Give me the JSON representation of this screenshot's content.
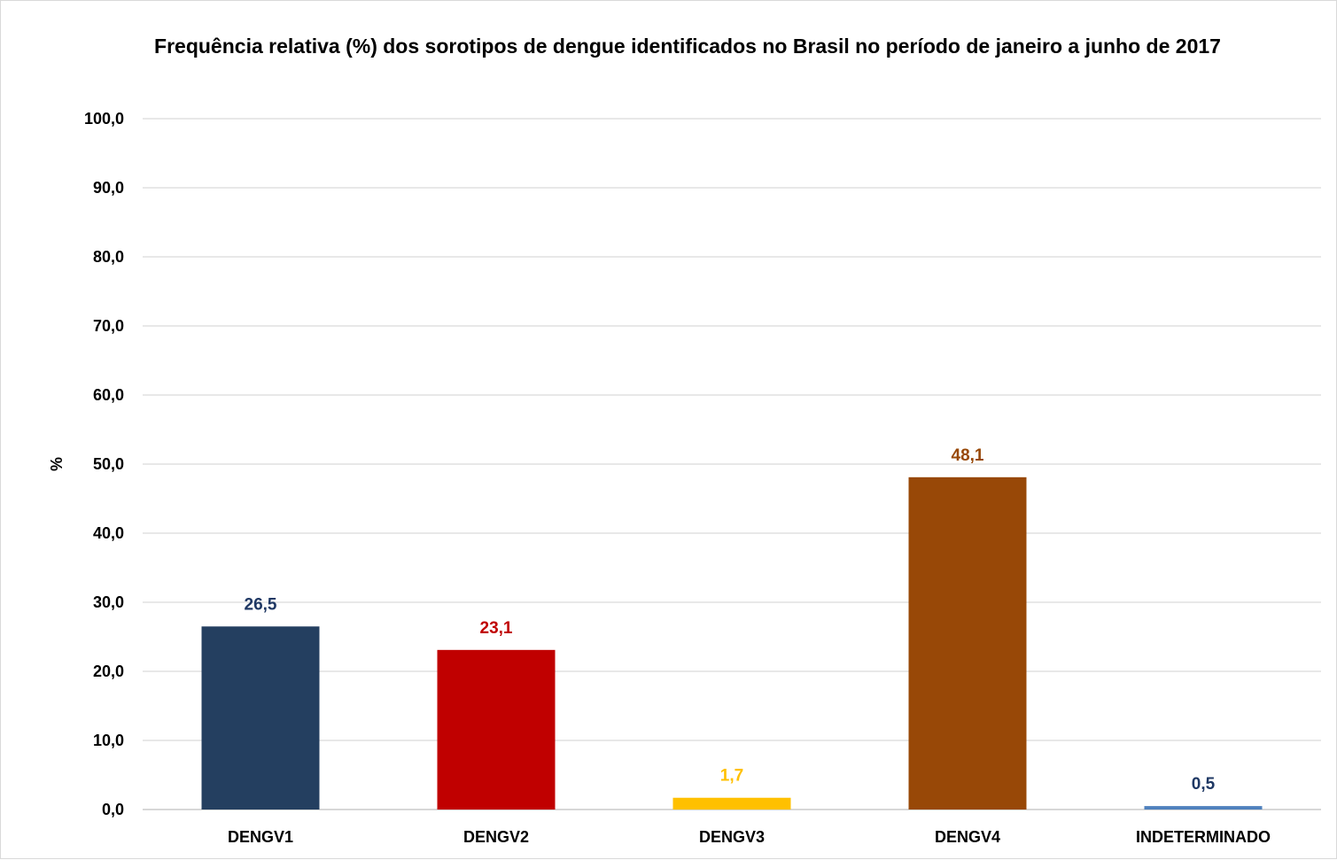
{
  "chart_data": {
    "type": "bar",
    "title": "Frequência relativa (%) dos sorotipos de dengue identificados no Brasil no período de janeiro a junho de 2017",
    "xlabel": "",
    "ylabel": "%",
    "ylim": [
      0,
      100
    ],
    "yticks": [
      "0,0",
      "10,0",
      "20,0",
      "30,0",
      "40,0",
      "50,0",
      "60,0",
      "70,0",
      "80,0",
      "90,0",
      "100,0"
    ],
    "grid": true,
    "legend": "none",
    "categories": [
      "DENGV1",
      "DENGV2",
      "DENGV3",
      "DENGV4",
      "INDETERMINADO"
    ],
    "values": [
      26.5,
      23.1,
      1.7,
      48.1,
      0.5
    ],
    "data_labels": [
      "26,5",
      "23,1",
      "1,7",
      "48,1",
      "0,5"
    ],
    "colors": [
      "#243f60",
      "#c00000",
      "#ffc000",
      "#984807",
      "#4f81bd"
    ],
    "label_colors": [
      "#1f3864",
      "#c00000",
      "#ffc000",
      "#984807",
      "#1f3864"
    ]
  }
}
